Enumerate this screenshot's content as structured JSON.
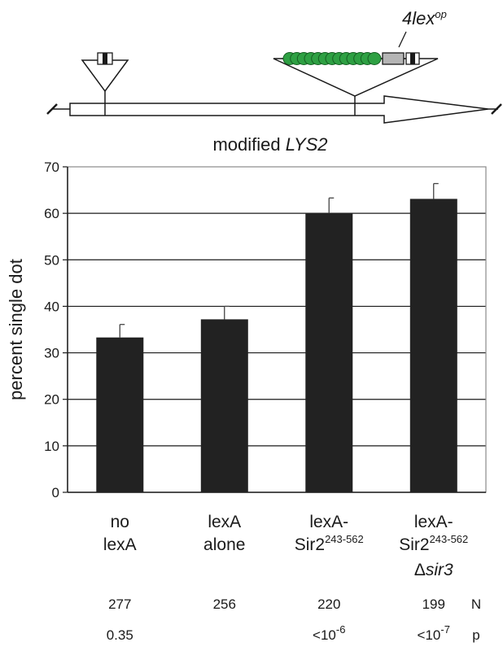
{
  "diagram": {
    "construct_label": "modified",
    "gene_label": "LYS2",
    "operator_label_main": "4lex",
    "operator_label_sup": "op",
    "repeat_count": 13,
    "colors": {
      "repeat_fill": "#2ea043",
      "operator_fill": "#b5b5b5"
    }
  },
  "chart_data": {
    "type": "bar",
    "ylabel": "percent single dot",
    "ylim": [
      0,
      70
    ],
    "yticks": [
      0,
      10,
      20,
      30,
      40,
      50,
      60,
      70
    ],
    "grid": true,
    "categories": [
      {
        "lines": [
          {
            "text": "no"
          },
          {
            "text": "lexA"
          }
        ]
      },
      {
        "lines": [
          {
            "text": "lexA"
          },
          {
            "text": "alone"
          }
        ]
      },
      {
        "lines": [
          {
            "text": "lexA-"
          },
          {
            "text": "Sir2",
            "sup": "243-562"
          }
        ]
      },
      {
        "lines": [
          {
            "text": "lexA-"
          },
          {
            "text": "Sir2",
            "sup": "243-562"
          },
          {
            "text": "Δ",
            "italic": "sir3"
          }
        ]
      }
    ],
    "values": [
      33.3,
      37.2,
      60.0,
      63.1
    ],
    "errors": [
      2.8,
      2.8,
      3.3,
      3.3
    ],
    "bar_color": "#222222",
    "stats": {
      "N": {
        "label": "N",
        "values": [
          "277",
          "256",
          "220",
          "199"
        ]
      },
      "p": {
        "label": "p",
        "values": [
          {
            "text": "0.35"
          },
          {
            "text": ""
          },
          {
            "text": "<10",
            "sup": "-6"
          },
          {
            "text": "<10",
            "sup": "-7"
          }
        ]
      }
    }
  }
}
